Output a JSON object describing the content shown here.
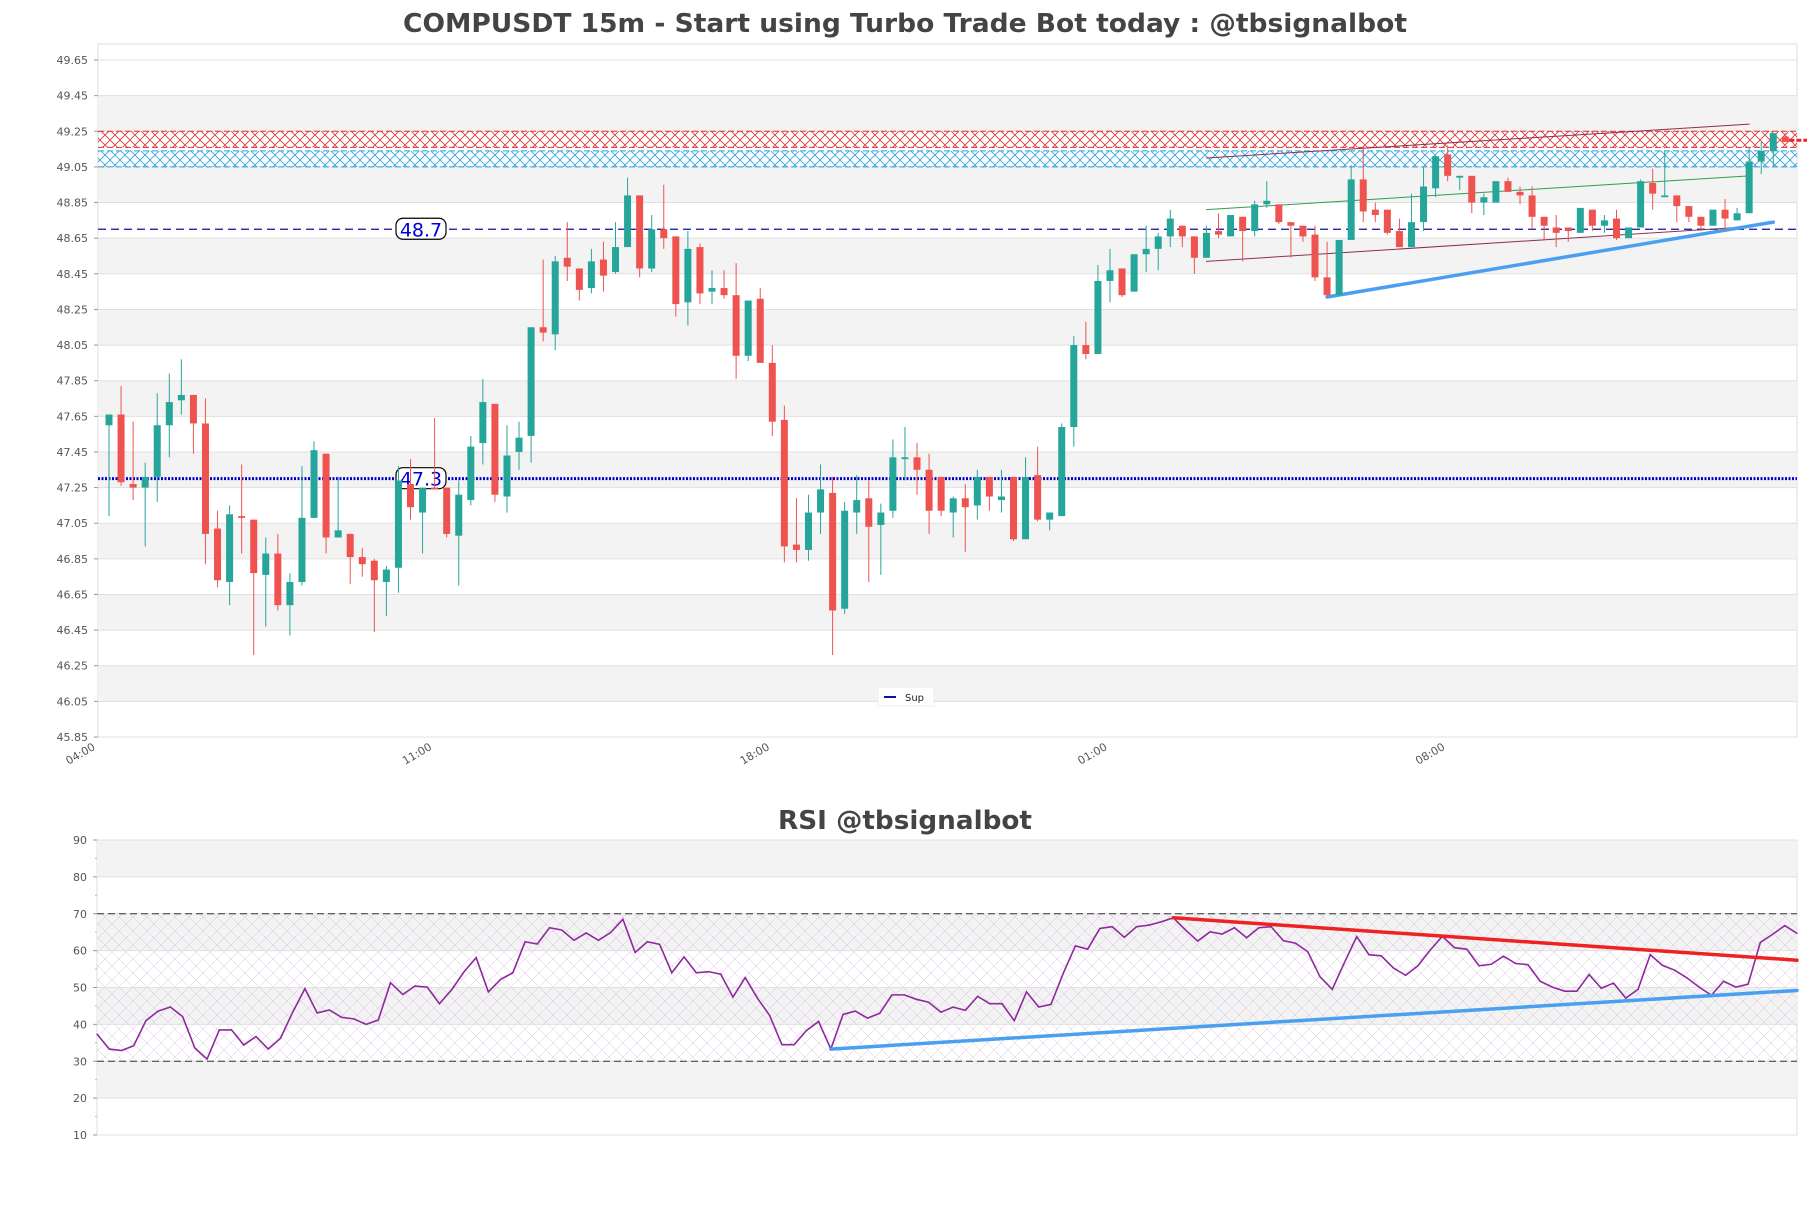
{
  "title": "COMPUSDT 15m - Start using Turbo Trade Bot today : @tbsignalbot",
  "rsi_title": "RSI @tbsignalbot",
  "colors": {
    "up": "#26a69a",
    "down": "#ef5350",
    "support": "#1010a0",
    "level_dotted": "#0000cc",
    "rsi_line": "#8e2a9c",
    "zone_red": "#e03030",
    "zone_blue": "#2aa0e0",
    "trend_blue": "#4aa0f0",
    "trend_red": "#ee2222",
    "channel": "#8b3050",
    "channel_mid": "#2e9e4e"
  },
  "chart_data": [
    {
      "type": "candlestick",
      "title": "COMPUSDT 15m - Start using Turbo Trade Bot today : @tbsignalbot",
      "ylim": [
        45.85,
        49.74
      ],
      "y_ticks": [
        "49.65",
        "49.45",
        "49.25",
        "49.05",
        "48.85",
        "48.65",
        "48.45",
        "48.25",
        "48.05",
        "47.85",
        "47.65",
        "47.45",
        "47.25",
        "47.05",
        "46.85",
        "46.65",
        "46.45",
        "46.25",
        "46.05",
        "45.85"
      ],
      "x_ticks": [
        {
          "label": "04:00",
          "index": -1
        },
        {
          "label": "11:00",
          "index": 27
        },
        {
          "label": "18:00",
          "index": 55
        },
        {
          "label": "01:00",
          "index": 83
        },
        {
          "label": "08:00",
          "index": 111
        }
      ],
      "grid": true,
      "levels": [
        {
          "value": 48.7,
          "label": "48.7",
          "style": "dashed"
        },
        {
          "value": 47.3,
          "label": "47.3",
          "style": "dotted"
        }
      ],
      "zones": [
        {
          "from": 49.16,
          "to": 49.25,
          "color": "red"
        },
        {
          "from": 49.05,
          "to": 49.14,
          "color": "blue"
        }
      ],
      "trendlines": [
        {
          "name": "channel-upper",
          "points": [
            [
              91,
              49.1
            ],
            [
              136,
              49.29
            ]
          ],
          "color": "channel"
        },
        {
          "name": "channel-mid",
          "points": [
            [
              91,
              48.81
            ],
            [
              136,
              49.0
            ]
          ],
          "color": "channel_mid"
        },
        {
          "name": "channel-lower",
          "points": [
            [
              91,
              48.52
            ],
            [
              135,
              48.71
            ]
          ],
          "color": "channel"
        },
        {
          "name": "support-trend",
          "points": [
            [
              101,
              48.32
            ],
            [
              138,
              48.74
            ]
          ],
          "color": "trend_blue"
        }
      ],
      "last_price_marker": 49.2,
      "legend": {
        "label": "Sup",
        "placement": "bottom-center"
      },
      "candles_format": [
        "open",
        "high",
        "low",
        "close"
      ],
      "candles": [
        [
          47.6,
          47.66,
          47.09,
          47.66
        ],
        [
          47.66,
          47.82,
          47.26,
          47.28
        ],
        [
          47.27,
          47.62,
          47.18,
          47.25
        ],
        [
          47.25,
          47.39,
          46.92,
          47.31
        ],
        [
          47.31,
          47.78,
          47.17,
          47.6
        ],
        [
          47.6,
          47.89,
          47.42,
          47.73
        ],
        [
          47.74,
          47.97,
          47.66,
          47.77
        ],
        [
          47.77,
          47.77,
          47.44,
          47.61
        ],
        [
          47.61,
          47.75,
          46.82,
          46.99
        ],
        [
          47.02,
          47.12,
          46.69,
          46.73
        ],
        [
          46.72,
          47.15,
          46.59,
          47.1
        ],
        [
          47.09,
          47.38,
          46.88,
          47.08
        ],
        [
          47.07,
          47.07,
          46.31,
          46.77
        ],
        [
          46.76,
          46.97,
          46.47,
          46.88
        ],
        [
          46.88,
          46.99,
          46.56,
          46.59
        ],
        [
          46.59,
          46.77,
          46.42,
          46.72
        ],
        [
          46.72,
          47.37,
          46.7,
          47.08
        ],
        [
          47.08,
          47.51,
          47.08,
          47.46
        ],
        [
          47.44,
          47.44,
          46.88,
          46.97
        ],
        [
          46.97,
          47.31,
          46.97,
          47.01
        ],
        [
          46.99,
          46.99,
          46.71,
          46.86
        ],
        [
          46.86,
          46.91,
          46.75,
          46.82
        ],
        [
          46.84,
          46.85,
          46.44,
          46.73
        ],
        [
          46.72,
          46.81,
          46.53,
          46.79
        ],
        [
          46.8,
          47.37,
          46.66,
          47.29
        ],
        [
          47.27,
          47.41,
          47.07,
          47.14
        ],
        [
          47.11,
          47.25,
          46.88,
          47.25
        ],
        [
          47.25,
          47.64,
          47.24,
          47.24
        ],
        [
          47.25,
          47.25,
          46.97,
          46.99
        ],
        [
          46.98,
          47.29,
          46.7,
          47.21
        ],
        [
          47.18,
          47.54,
          47.15,
          47.48
        ],
        [
          47.5,
          47.86,
          47.38,
          47.73
        ],
        [
          47.72,
          47.72,
          47.17,
          47.21
        ],
        [
          47.2,
          47.6,
          47.11,
          47.43
        ],
        [
          47.45,
          47.62,
          47.35,
          47.53
        ],
        [
          47.54,
          48.15,
          47.39,
          48.15
        ],
        [
          48.15,
          48.53,
          48.07,
          48.12
        ],
        [
          48.11,
          48.55,
          48.02,
          48.52
        ],
        [
          48.54,
          48.74,
          48.41,
          48.49
        ],
        [
          48.48,
          48.48,
          48.3,
          48.36
        ],
        [
          48.37,
          48.59,
          48.34,
          48.52
        ],
        [
          48.53,
          48.63,
          48.35,
          48.44
        ],
        [
          48.46,
          48.74,
          48.45,
          48.6
        ],
        [
          48.6,
          48.99,
          48.6,
          48.89
        ],
        [
          48.89,
          48.89,
          48.43,
          48.48
        ],
        [
          48.48,
          48.78,
          48.46,
          48.7
        ],
        [
          48.7,
          48.95,
          48.59,
          48.65
        ],
        [
          48.66,
          48.66,
          48.21,
          48.28
        ],
        [
          48.29,
          48.69,
          48.16,
          48.59
        ],
        [
          48.6,
          48.62,
          48.28,
          48.34
        ],
        [
          48.35,
          48.47,
          48.28,
          48.37
        ],
        [
          48.37,
          48.47,
          48.31,
          48.33
        ],
        [
          48.33,
          48.51,
          47.86,
          47.99
        ],
        [
          47.99,
          48.3,
          47.96,
          48.3
        ],
        [
          48.31,
          48.37,
          47.95,
          47.95
        ],
        [
          47.95,
          48.05,
          47.54,
          47.62
        ],
        [
          47.63,
          47.71,
          46.83,
          46.92
        ],
        [
          46.93,
          47.19,
          46.83,
          46.9
        ],
        [
          46.9,
          47.21,
          46.84,
          47.11
        ],
        [
          47.11,
          47.38,
          46.99,
          47.24
        ],
        [
          47.22,
          47.31,
          46.31,
          46.56
        ],
        [
          46.57,
          47.17,
          46.54,
          47.12
        ],
        [
          47.11,
          47.32,
          46.99,
          47.18
        ],
        [
          47.19,
          47.29,
          46.72,
          47.03
        ],
        [
          47.04,
          47.16,
          46.76,
          47.11
        ],
        [
          47.12,
          47.52,
          47.08,
          47.42
        ],
        [
          47.41,
          47.59,
          47.29,
          47.42
        ],
        [
          47.42,
          47.5,
          47.21,
          47.35
        ],
        [
          47.35,
          47.44,
          46.99,
          47.12
        ],
        [
          47.31,
          47.31,
          47.09,
          47.12
        ],
        [
          47.11,
          47.2,
          46.97,
          47.19
        ],
        [
          47.19,
          47.27,
          46.89,
          47.14
        ],
        [
          47.15,
          47.35,
          47.07,
          47.31
        ],
        [
          47.31,
          47.31,
          47.12,
          47.2
        ],
        [
          47.18,
          47.35,
          47.11,
          47.2
        ],
        [
          47.31,
          47.31,
          46.95,
          46.96
        ],
        [
          46.96,
          47.42,
          46.96,
          47.31
        ],
        [
          47.32,
          47.48,
          47.06,
          47.07
        ],
        [
          47.07,
          47.11,
          47.01,
          47.11
        ],
        [
          47.09,
          47.61,
          47.09,
          47.59
        ],
        [
          47.59,
          48.1,
          47.48,
          48.05
        ],
        [
          48.05,
          48.18,
          47.97,
          48.0
        ],
        [
          48.0,
          48.5,
          48.0,
          48.41
        ],
        [
          48.41,
          48.59,
          48.29,
          48.47
        ],
        [
          48.48,
          48.48,
          48.32,
          48.33
        ],
        [
          48.35,
          48.56,
          48.35,
          48.56
        ],
        [
          48.56,
          48.72,
          48.46,
          48.59
        ],
        [
          48.59,
          48.68,
          48.47,
          48.66
        ],
        [
          48.66,
          48.81,
          48.6,
          48.76
        ],
        [
          48.72,
          48.72,
          48.6,
          48.66
        ],
        [
          48.66,
          48.66,
          48.45,
          48.54
        ],
        [
          48.54,
          48.72,
          48.54,
          48.68
        ],
        [
          48.69,
          48.79,
          48.65,
          48.67
        ],
        [
          48.66,
          48.78,
          48.66,
          48.78
        ],
        [
          48.77,
          48.77,
          48.52,
          48.69
        ],
        [
          48.69,
          48.86,
          48.66,
          48.84
        ],
        [
          48.84,
          48.97,
          48.82,
          48.86
        ],
        [
          48.84,
          48.84,
          48.73,
          48.74
        ],
        [
          48.74,
          48.74,
          48.54,
          48.72
        ],
        [
          48.72,
          48.72,
          48.63,
          48.66
        ],
        [
          48.67,
          48.72,
          48.41,
          48.43
        ],
        [
          48.43,
          48.63,
          48.32,
          48.33
        ],
        [
          48.33,
          48.64,
          48.33,
          48.64
        ],
        [
          48.64,
          49.06,
          48.64,
          48.98
        ],
        [
          48.98,
          49.16,
          48.74,
          48.8
        ],
        [
          48.81,
          48.85,
          48.74,
          48.78
        ],
        [
          48.81,
          48.81,
          48.67,
          48.68
        ],
        [
          48.69,
          48.76,
          48.6,
          48.6
        ],
        [
          48.6,
          48.9,
          48.6,
          48.74
        ],
        [
          48.74,
          49.05,
          48.69,
          48.94
        ],
        [
          48.93,
          49.11,
          48.88,
          49.11
        ],
        [
          49.12,
          49.17,
          48.97,
          49.0
        ],
        [
          48.99,
          49.0,
          48.92,
          49.0
        ],
        [
          49.0,
          49.0,
          48.79,
          48.85
        ],
        [
          48.85,
          48.9,
          48.78,
          48.88
        ],
        [
          48.85,
          48.97,
          48.85,
          48.97
        ],
        [
          48.97,
          48.99,
          48.91,
          48.91
        ],
        [
          48.91,
          48.94,
          48.84,
          48.89
        ],
        [
          48.89,
          48.94,
          48.7,
          48.77
        ],
        [
          48.77,
          48.77,
          48.64,
          48.72
        ],
        [
          48.71,
          48.78,
          48.6,
          48.68
        ],
        [
          48.71,
          48.71,
          48.63,
          48.69
        ],
        [
          48.68,
          48.82,
          48.68,
          48.82
        ],
        [
          48.81,
          48.81,
          48.69,
          48.72
        ],
        [
          48.72,
          48.78,
          48.68,
          48.75
        ],
        [
          48.76,
          48.81,
          48.64,
          48.65
        ],
        [
          48.65,
          48.71,
          48.65,
          48.71
        ],
        [
          48.71,
          48.98,
          48.71,
          48.97
        ],
        [
          48.96,
          49.04,
          48.81,
          48.9
        ],
        [
          48.88,
          49.14,
          48.88,
          48.89
        ],
        [
          48.89,
          48.89,
          48.74,
          48.83
        ],
        [
          48.83,
          48.83,
          48.74,
          48.77
        ],
        [
          48.77,
          48.77,
          48.69,
          48.72
        ],
        [
          48.72,
          48.81,
          48.72,
          48.81
        ],
        [
          48.81,
          48.87,
          48.69,
          48.76
        ],
        [
          48.75,
          48.82,
          48.75,
          48.79
        ],
        [
          48.79,
          49.16,
          48.79,
          49.08
        ],
        [
          49.08,
          49.19,
          49.01,
          49.14
        ],
        [
          49.14,
          49.24,
          49.05,
          49.24
        ],
        [
          49.22,
          49.24,
          49.19,
          49.19
        ]
      ]
    },
    {
      "type": "line",
      "title": "RSI @tbsignalbot",
      "ylim": [
        10,
        90
      ],
      "y_ticks": [
        "90",
        "80",
        "70",
        "60",
        "50",
        "40",
        "30",
        "20",
        "10"
      ],
      "thresholds": [
        70,
        30
      ],
      "band": [
        30,
        70
      ],
      "grid": true,
      "values": [
        37.4,
        33.3,
        32.9,
        34.2,
        41.0,
        43.6,
        44.7,
        42.1,
        33.6,
        30.6,
        38.5,
        38.5,
        34.4,
        36.7,
        33.3,
        36.2,
        43.3,
        49.7,
        43.1,
        43.9,
        41.9,
        41.5,
        40.0,
        41.2,
        51.3,
        48.1,
        50.4,
        50.1,
        45.6,
        49.4,
        54.2,
        58.1,
        48.8,
        52.2,
        54.0,
        62.4,
        61.8,
        66.2,
        65.6,
        62.8,
        64.8,
        62.8,
        64.9,
        68.5,
        59.5,
        62.4,
        61.7,
        54.0,
        58.3,
        54.0,
        54.3,
        53.6,
        47.4,
        52.7,
        47.1,
        42.4,
        34.5,
        34.5,
        38.3,
        40.8,
        33.3,
        42.7,
        43.6,
        41.7,
        43.0,
        48.0,
        48.0,
        46.8,
        46.0,
        43.3,
        44.7,
        43.8,
        47.6,
        45.6,
        45.6,
        41.0,
        48.8,
        44.7,
        45.4,
        53.8,
        61.3,
        60.4,
        66.0,
        66.5,
        63.6,
        66.5,
        66.9,
        67.8,
        68.9,
        65.6,
        62.6,
        65.1,
        64.5,
        66.2,
        63.5,
        66.2,
        66.5,
        62.7,
        62.0,
        59.7,
        52.9,
        49.5,
        56.8,
        63.8,
        58.9,
        58.6,
        55.3,
        53.3,
        55.9,
        60.1,
        63.9,
        60.8,
        60.4,
        55.9,
        56.3,
        58.5,
        56.5,
        56.2,
        51.7,
        50.1,
        49.0,
        49.0,
        53.5,
        49.8,
        51.2,
        47.1,
        49.5,
        58.9,
        56.0,
        54.7,
        52.6,
        50.1,
        47.9,
        51.7,
        50.1,
        50.9,
        62.2,
        64.4,
        66.8,
        64.7
      ],
      "trendlines": [
        {
          "name": "rsi-resistance",
          "points": [
            [
              88,
              68.9
            ],
            [
              139,
              57.4
            ]
          ],
          "color": "trend_red"
        },
        {
          "name": "rsi-support",
          "points": [
            [
              60,
              33.3
            ],
            [
              139,
              49.2
            ]
          ],
          "color": "trend_blue"
        }
      ]
    }
  ]
}
